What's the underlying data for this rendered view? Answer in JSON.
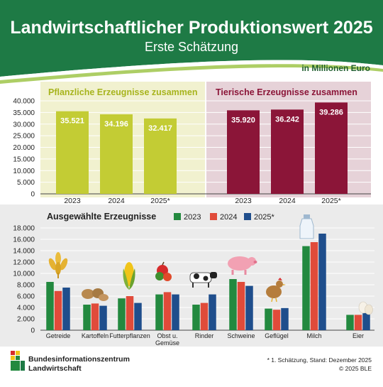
{
  "header": {
    "title": "Landwirtschaftlicher Produktionswert 2025",
    "subtitle": "Erste Schätzung",
    "unit": "in Millionen Euro"
  },
  "colors": {
    "header_green": "#1e7a45",
    "plant_bar": "#c3cc34",
    "plant_bg": "#f1f1cf",
    "animal_bar": "#8b1538",
    "animal_bg": "#e6d2d8",
    "y2023": "#23893f",
    "y2024": "#e04b3a",
    "y2025": "#1f4e8c",
    "bottom_bg": "#ebebeb"
  },
  "chart_data": [
    {
      "type": "bar",
      "title": "",
      "ylim": [
        0,
        40000
      ],
      "yticks": [
        "0",
        "5.000",
        "10.000",
        "15.000",
        "20.000",
        "25.000",
        "30.000",
        "35.000",
        "40.000"
      ],
      "grid": true,
      "groups": [
        {
          "name": "Pflanzliche Erzeugnisse zusammen",
          "categories": [
            "2023",
            "2024",
            "2025*"
          ],
          "values": [
            35521,
            34196,
            32417
          ],
          "labels": [
            "35.521",
            "34.196",
            "32.417"
          ]
        },
        {
          "name": "Tierische Erzeugnisse zusammen",
          "categories": [
            "2023",
            "2024",
            "2025*"
          ],
          "values": [
            35920,
            36242,
            39286
          ],
          "labels": [
            "35.920",
            "36.242",
            "39.286"
          ]
        }
      ]
    },
    {
      "type": "bar",
      "title": "Ausgewählte Erzeugnisse",
      "ylim": [
        0,
        18000
      ],
      "yticks": [
        "0",
        "2.000",
        "4.000",
        "6.000",
        "8.000",
        "10.000",
        "12.000",
        "14.000",
        "16.000",
        "18.000"
      ],
      "grid": true,
      "legend_position": "top",
      "categories": [
        "Getreide",
        "Kartoffeln",
        "Futterpflanzen",
        "Obst u. Gemüse",
        "Rinder",
        "Schweine",
        "Geflügel",
        "Milch",
        "Eier"
      ],
      "series": [
        {
          "name": "2023",
          "values": [
            8500,
            4500,
            5600,
            6300,
            4500,
            9000,
            3800,
            14800,
            2700
          ]
        },
        {
          "name": "2024",
          "values": [
            6900,
            4700,
            6000,
            6700,
            4800,
            8500,
            3600,
            15500,
            2700
          ]
        },
        {
          "name": "2025*",
          "values": [
            7500,
            4300,
            4800,
            6300,
            6300,
            7800,
            3900,
            17000,
            3000
          ]
        }
      ]
    }
  ],
  "footer": {
    "org_line1": "Bundesinformationszentrum",
    "org_line2": "Landwirtschaft",
    "note": "* 1. Schätzung, Stand: Dezember 2025",
    "copyright": "© 2025 BLE"
  }
}
